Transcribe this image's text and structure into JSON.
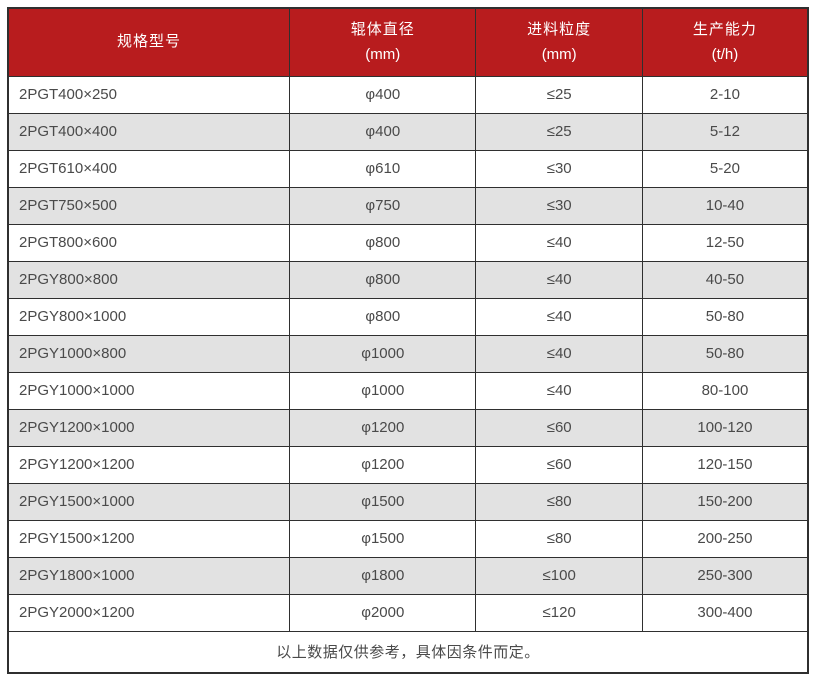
{
  "colors": {
    "header_bg": "#b81c1e",
    "header_text": "#ffffff",
    "row_alt_bg": "#e2e2e2",
    "row_bg": "#ffffff",
    "border": "#2f2f2f",
    "text": "#4a4a4a"
  },
  "table": {
    "columns": [
      {
        "label": "规格型号",
        "sub": ""
      },
      {
        "label": "辊体直径",
        "sub": "(mm)"
      },
      {
        "label": "进料粒度",
        "sub": "(mm)"
      },
      {
        "label": "生产能力",
        "sub": "(t/h)"
      }
    ],
    "rows": [
      {
        "model": "2PGT400×250",
        "diameter": "φ400",
        "feed": "≤25",
        "capacity": "2-10"
      },
      {
        "model": "2PGT400×400",
        "diameter": "φ400",
        "feed": "≤25",
        "capacity": "5-12"
      },
      {
        "model": "2PGT610×400",
        "diameter": "φ610",
        "feed": "≤30",
        "capacity": "5-20"
      },
      {
        "model": "2PGT750×500",
        "diameter": "φ750",
        "feed": "≤30",
        "capacity": "10-40"
      },
      {
        "model": "2PGT800×600",
        "diameter": "φ800",
        "feed": "≤40",
        "capacity": "12-50"
      },
      {
        "model": "2PGY800×800",
        "diameter": "φ800",
        "feed": "≤40",
        "capacity": "40-50"
      },
      {
        "model": "2PGY800×1000",
        "diameter": "φ800",
        "feed": "≤40",
        "capacity": "50-80"
      },
      {
        "model": "2PGY1000×800",
        "diameter": "φ1000",
        "feed": "≤40",
        "capacity": "50-80"
      },
      {
        "model": "2PGY1000×1000",
        "diameter": "φ1000",
        "feed": "≤40",
        "capacity": "80-100"
      },
      {
        "model": "2PGY1200×1000",
        "diameter": "φ1200",
        "feed": "≤60",
        "capacity": "100-120"
      },
      {
        "model": "2PGY1200×1200",
        "diameter": "φ1200",
        "feed": "≤60",
        "capacity": "120-150"
      },
      {
        "model": "2PGY1500×1000",
        "diameter": "φ1500",
        "feed": "≤80",
        "capacity": "150-200"
      },
      {
        "model": "2PGY1500×1200",
        "diameter": "φ1500",
        "feed": "≤80",
        "capacity": "200-250"
      },
      {
        "model": "2PGY1800×1000",
        "diameter": "φ1800",
        "feed": "≤100",
        "capacity": "250-300"
      },
      {
        "model": "2PGY2000×1200",
        "diameter": "φ2000",
        "feed": "≤120",
        "capacity": "300-400"
      }
    ],
    "footnote": "以上数据仅供参考，具体因条件而定。"
  }
}
